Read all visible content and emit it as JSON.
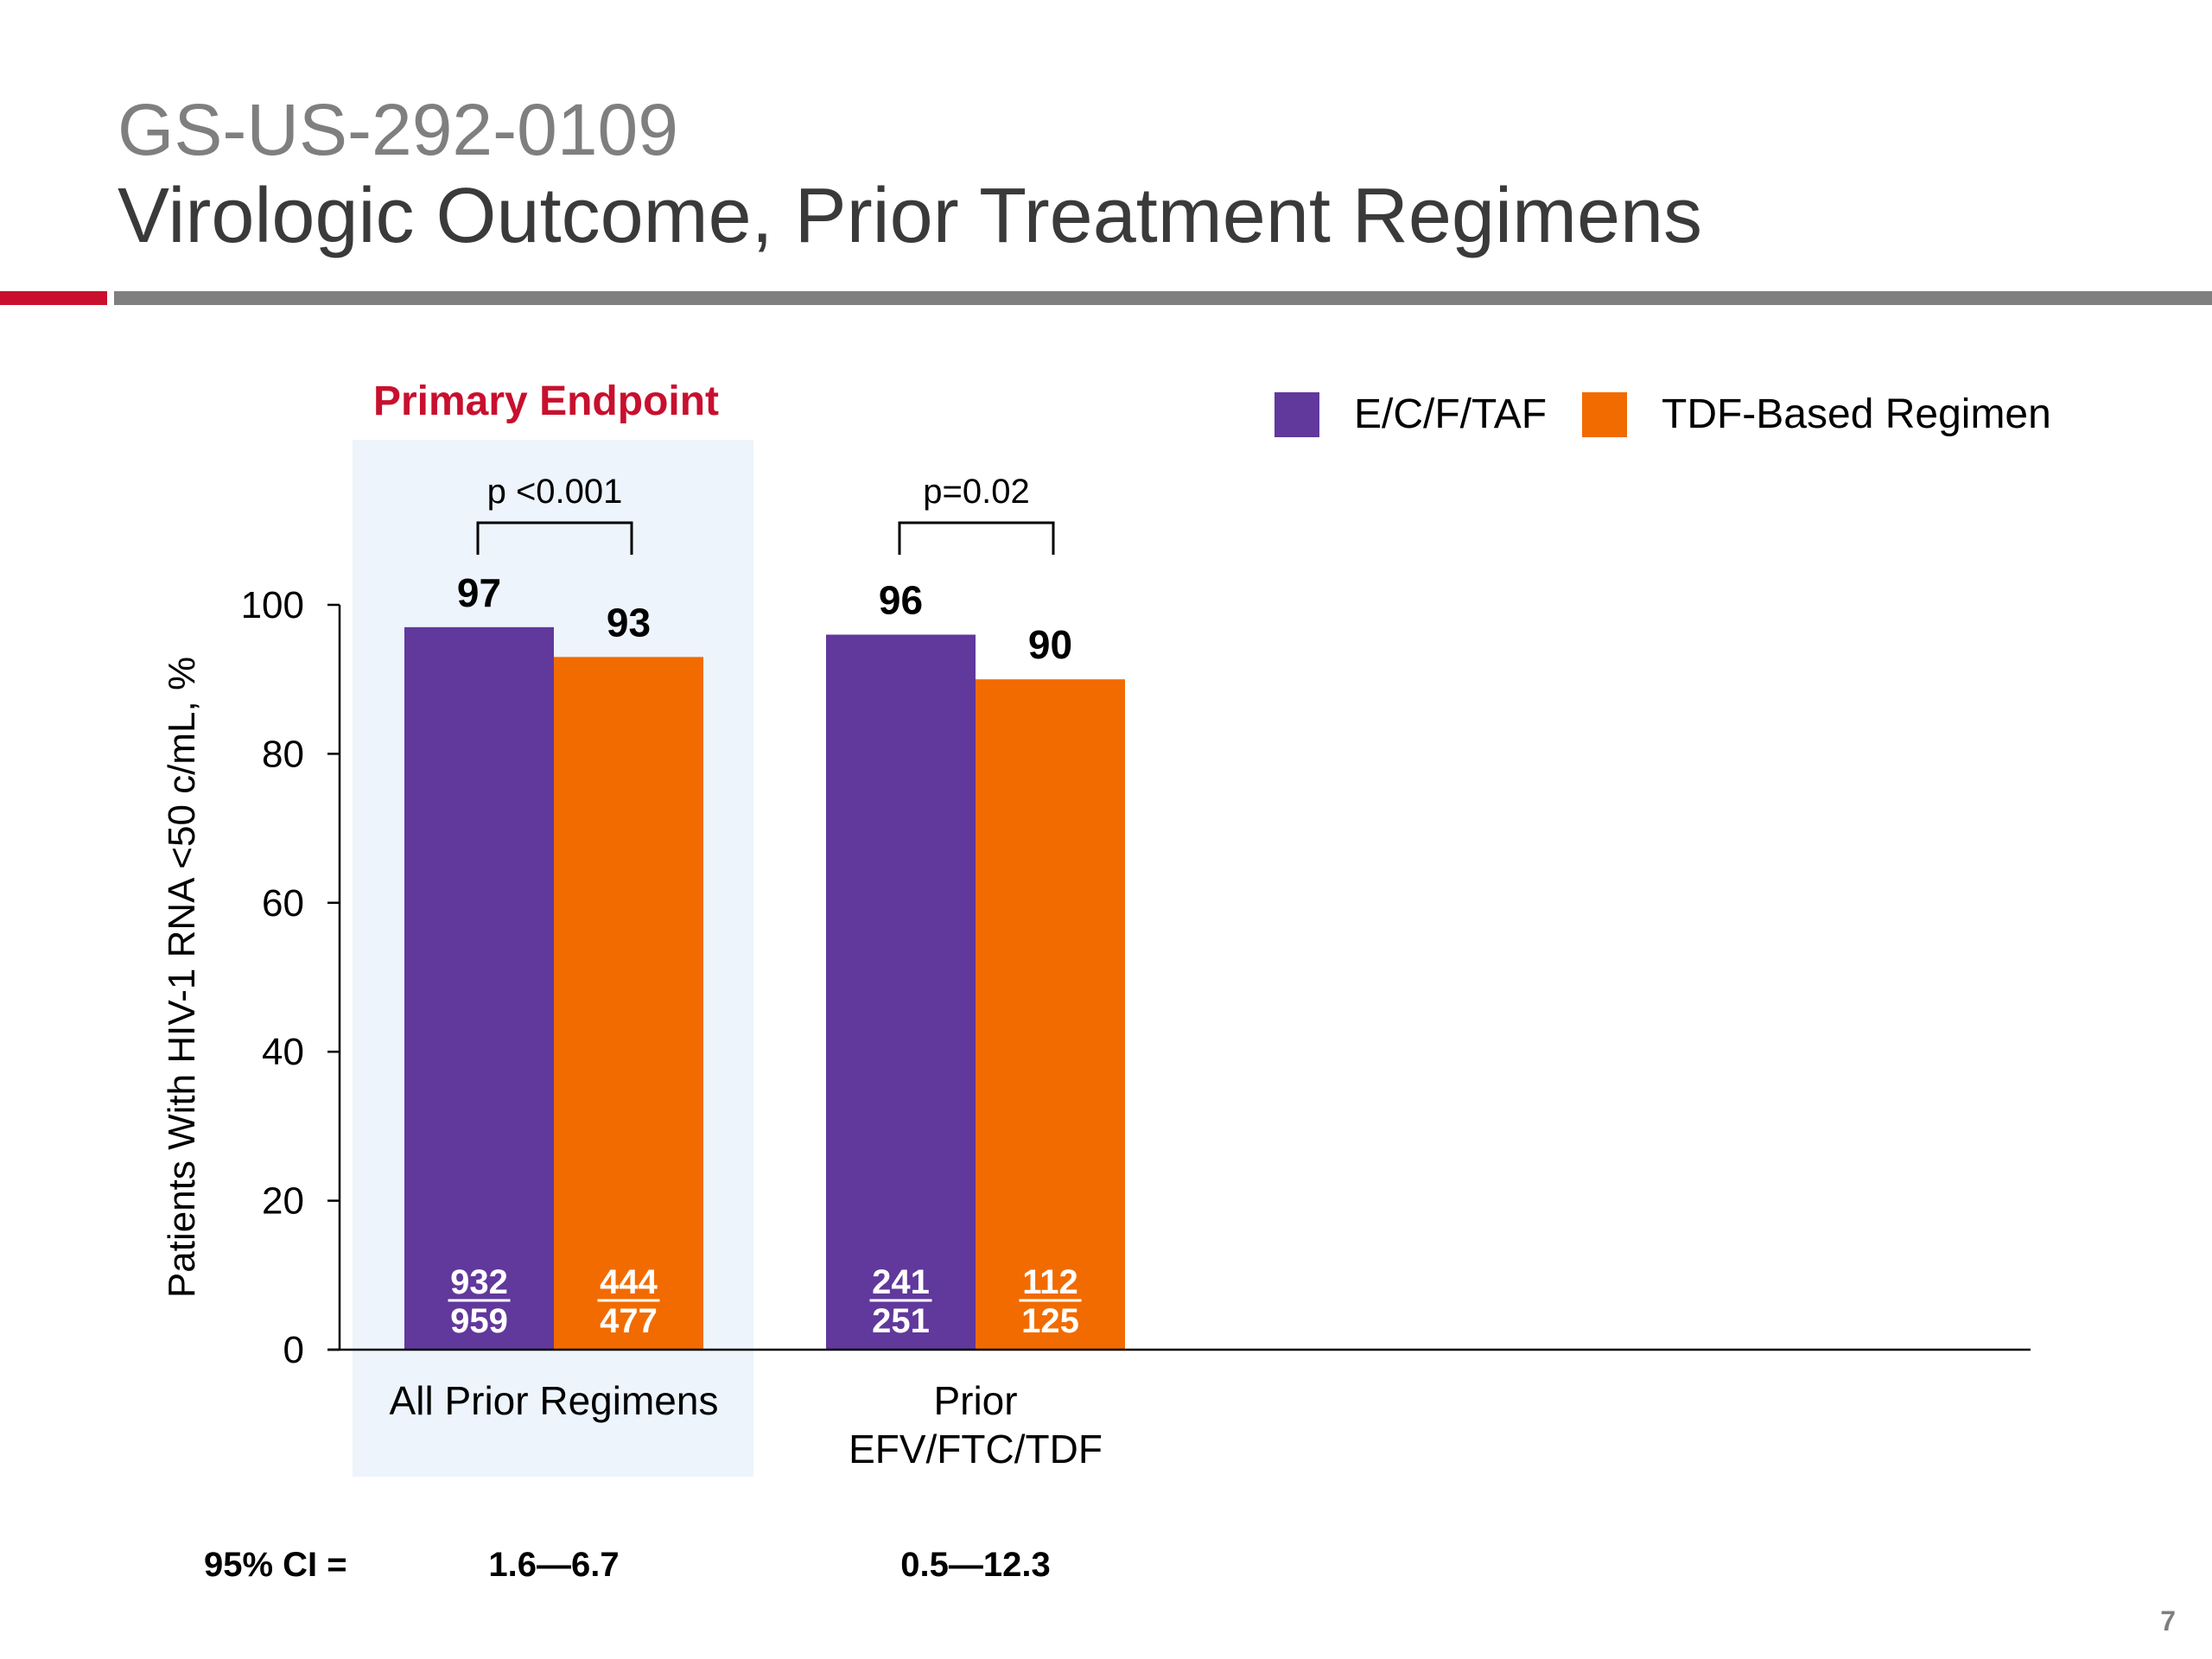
{
  "slide": {
    "title_line1": "GS-US-292-0109",
    "title_line2": "Virologic Outcome, Prior Treatment Regimens",
    "page_number": "7"
  },
  "colors": {
    "title_gray": "#7f7f7f",
    "title_dark": "#3a3a3a",
    "accent_red": "#c8102e",
    "purple": "#61389c",
    "orange": "#f26b00",
    "highlight_bg": "#edf4fb"
  },
  "chart_data": {
    "type": "bar",
    "ylabel": "Patients With HIV-1 RNA <50 c/mL, %",
    "ylim": [
      0,
      100
    ],
    "yticks": [
      0,
      20,
      40,
      60,
      80,
      100
    ],
    "categories": [
      "All Prior Regimens",
      "Prior\nEFV/FTC/TDF"
    ],
    "series": [
      {
        "name": "E/C/F/TAF",
        "color": "#61389c",
        "values": [
          97,
          96
        ],
        "numerators": [
          "932",
          "241"
        ],
        "denominators": [
          "959",
          "251"
        ]
      },
      {
        "name": "TDF-Based Regimen",
        "color": "#f26b00",
        "values": [
          93,
          90
        ],
        "numerators": [
          "444",
          "112"
        ],
        "denominators": [
          "477",
          "125"
        ]
      }
    ],
    "p_values": [
      "p <0.001",
      "p=0.02"
    ],
    "highlight": {
      "category_index": 0,
      "label": "Primary Endpoint"
    },
    "ci_label": "95% CI =",
    "ci_values": [
      "1.6—6.7",
      "0.5—12.3"
    ],
    "legend_position": "top-right",
    "grid": false
  }
}
